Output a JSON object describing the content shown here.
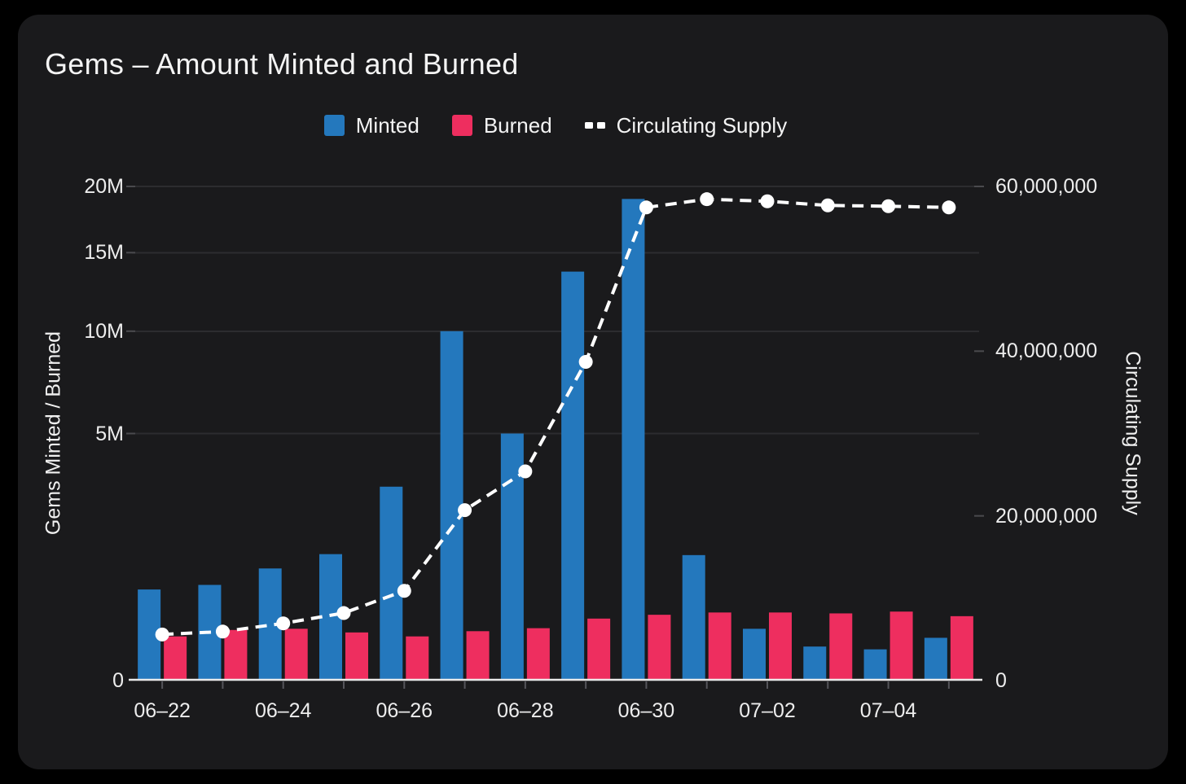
{
  "title": "Gems – Amount Minted and Burned",
  "legend": [
    {
      "label": "Minted",
      "marker": "square",
      "color": "#2478bd"
    },
    {
      "label": "Burned",
      "marker": "square",
      "color": "#ee2e5f"
    },
    {
      "label": "Circulating Supply",
      "marker": "dashed-line",
      "color": "#ffffff"
    }
  ],
  "colors": {
    "outer_bg": "#000000",
    "panel_bg": "#1a1a1c",
    "grid": "#2c2c2f",
    "axis_line": "#e9e9e9",
    "tick_mark": "#55555a",
    "text": "#ededed",
    "minted": "#2478bd",
    "burned": "#ee2e5f",
    "supply_line": "#ffffff"
  },
  "axes": {
    "left": {
      "title": "Gems Minted / Burned",
      "scale": "sqrt",
      "tick_labels": [
        "20M",
        "15M",
        "10M",
        "5M",
        "0"
      ],
      "tick_values": [
        20000000,
        15000000,
        10000000,
        5000000,
        0
      ]
    },
    "right": {
      "title": "Circulating Supply",
      "scale": "linear",
      "tick_labels": [
        "60,000,000",
        "40,000,000",
        "20,000,000",
        "0"
      ],
      "tick_values": [
        60000000,
        40000000,
        20000000,
        0
      ]
    },
    "x": {
      "tick_labels": [
        "06–22",
        "06–24",
        "06–26",
        "06–28",
        "06–30",
        "07–02",
        "07–04"
      ],
      "label_every": 2
    }
  },
  "chart_data": {
    "type": "combo-bar-line",
    "title": "Gems – Amount Minted and Burned",
    "categories": [
      "06-22",
      "06-23",
      "06-24",
      "06-25",
      "06-26",
      "06-27",
      "06-28",
      "06-29",
      "06-30",
      "07-01",
      "07-02",
      "07-03",
      "07-04",
      "07-05"
    ],
    "series": [
      {
        "name": "Minted",
        "type": "bar",
        "y_axis": "left",
        "color": "#2478bd",
        "values": [
          680000,
          750000,
          1030000,
          1310000,
          3080000,
          10000000,
          5000000,
          13700000,
          19000000,
          1290000,
          220000,
          95000,
          80000,
          150000
        ]
      },
      {
        "name": "Burned",
        "type": "bar",
        "y_axis": "left",
        "color": "#ee2e5f",
        "values": [
          160000,
          210000,
          220000,
          190000,
          160000,
          200000,
          225000,
          315000,
          355000,
          380000,
          380000,
          370000,
          390000,
          340000
        ]
      },
      {
        "name": "Circulating Supply",
        "type": "line",
        "y_axis": "right",
        "color": "#ffffff",
        "line_style": "dashed",
        "marker": "circle",
        "values": [
          5600000,
          5950000,
          6950000,
          8200000,
          10900000,
          20700000,
          25400000,
          38700000,
          57450000,
          58450000,
          58200000,
          57700000,
          57600000,
          57450000
        ]
      }
    ],
    "xlabel": "",
    "ylabel_left": "Gems Minted / Burned",
    "ylabel_right": "Circulating Supply",
    "ylim_left": [
      0,
      20000000
    ],
    "ylim_right": [
      0,
      60000000
    ],
    "left_scale": "sqrt",
    "right_scale": "linear",
    "grid": "horizontal",
    "legend_position": "top-center"
  }
}
